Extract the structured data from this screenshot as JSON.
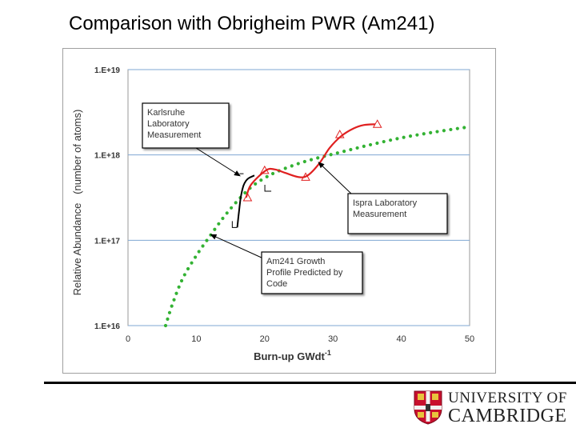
{
  "slide": {
    "title": "Comparison with Obrigheim PWR (Am241)"
  },
  "branding": {
    "university_line1": "UNIVERSITY OF",
    "university_line2": "CAMBRIDGE",
    "accent": "#c8102e"
  },
  "chart_data": {
    "type": "line",
    "title": "Comparison with Obrigheim PWR (Am241)",
    "xlabel": "Burn-up GWdt",
    "xlabel_exponent": "-1",
    "ylabel": "Relative Abundance   (number of atoms)",
    "x_ticks": [
      0,
      10,
      20,
      30,
      40,
      50
    ],
    "y_ticks": [
      {
        "label": "1.E+16",
        "log10": 16
      },
      {
        "label": "1.E+17",
        "log10": 17
      },
      {
        "label": "1.E+18",
        "log10": 18
      },
      {
        "label": "1.E+19",
        "log10": 19
      }
    ],
    "xlim": [
      0,
      50
    ],
    "ylim_log10": [
      16,
      19
    ],
    "grid": "horizontal",
    "series": [
      {
        "name": "Am241 Growth Profile Predicted by Code",
        "style": "dotted",
        "color": "#33b233",
        "x": [
          5.5,
          6.5,
          8,
          10,
          12,
          14,
          16,
          18,
          20,
          22,
          25,
          28,
          31,
          35,
          40,
          45,
          50
        ],
        "log10_y": [
          16.0,
          16.25,
          16.55,
          16.82,
          17.05,
          17.27,
          17.46,
          17.62,
          17.73,
          17.81,
          17.9,
          17.97,
          18.03,
          18.11,
          18.2,
          18.27,
          18.33
        ]
      },
      {
        "name": "Ispra Laboratory Measurement",
        "style": "solid",
        "color": "#e02020",
        "markers": "open-triangle",
        "x": [
          17.3,
          18.0,
          20.2,
          21.5,
          23.0,
          25.0,
          26.3,
          28.0,
          29.5,
          31.2,
          33.0,
          34.5,
          36.2
        ],
        "log10_y": [
          17.5,
          17.65,
          17.82,
          17.83,
          17.79,
          17.74,
          17.76,
          17.9,
          18.08,
          18.22,
          18.31,
          18.35,
          18.36
        ],
        "marker_x": [
          17.5,
          20.0,
          26.0,
          31.0,
          36.5
        ],
        "marker_log10_y": [
          17.5,
          17.82,
          17.74,
          18.24,
          18.36
        ]
      },
      {
        "name": "Karlsruhe Laboratory Measurement",
        "style": "solid",
        "color": "#000000",
        "x": [
          16.0,
          16.2,
          16.5,
          16.9,
          17.3,
          17.7,
          18.5
        ],
        "log10_y": [
          17.15,
          17.3,
          17.5,
          17.64,
          17.7,
          17.73,
          17.76
        ]
      }
    ],
    "annotations": [
      {
        "text": "Karlsruhe Laboratory Measurement",
        "lines": [
          "Karlsruhe",
          "Laboratory",
          "Measurement"
        ]
      },
      {
        "text": "Ispra Laboratory Measurement",
        "lines": [
          "Ispra Laboratory",
          "Measurement"
        ]
      },
      {
        "text": "Am241 Growth Profile Predicted by Code",
        "lines": [
          "Am241 Growth",
          "Profile Predicted by",
          "Code"
        ]
      }
    ]
  }
}
